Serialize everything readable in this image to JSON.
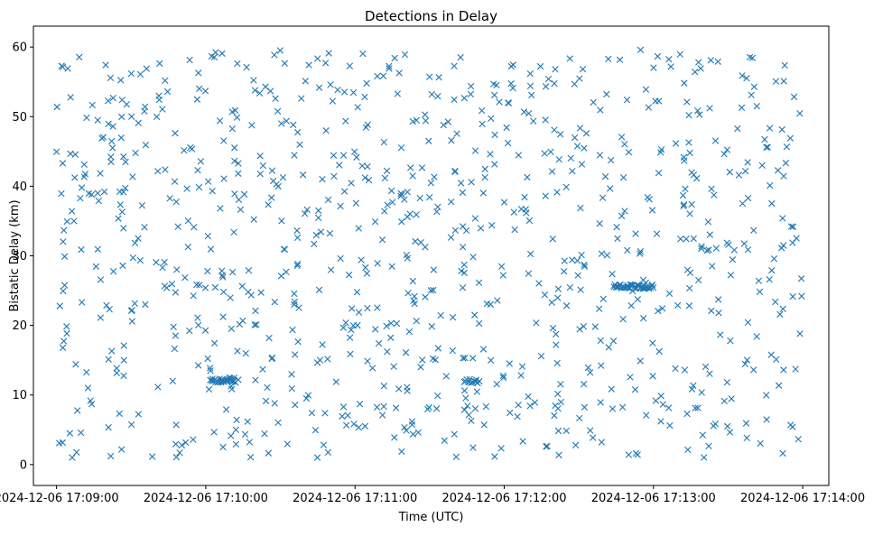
{
  "chart_data": {
    "type": "scatter",
    "title": "Detections in Delay",
    "xlabel": "Time (UTC)",
    "ylabel": "Bistatic Delay (km)",
    "marker": "x",
    "series_color": "#1f77b4",
    "grid": false,
    "legend": "none",
    "x_unit": "seconds after 2024-12-06 17:09:00",
    "x_range": [
      0,
      300
    ],
    "xlim": [
      -9.3,
      310.5
    ],
    "ylim": [
      -3,
      63
    ],
    "x_ticks": [
      {
        "value": 0,
        "label": "2024-12-06 17:09:00"
      },
      {
        "value": 60,
        "label": "2024-12-06 17:10:00"
      },
      {
        "value": 120,
        "label": "2024-12-06 17:11:00"
      },
      {
        "value": 180,
        "label": "2024-12-06 17:12:00"
      },
      {
        "value": 240,
        "label": "2024-12-06 17:13:00"
      },
      {
        "value": 300,
        "label": "2024-12-06 17:14:00"
      }
    ],
    "y_ticks": [
      {
        "value": 0,
        "label": "0"
      },
      {
        "value": 10,
        "label": "10"
      },
      {
        "value": 20,
        "label": "20"
      },
      {
        "value": 30,
        "label": "30"
      },
      {
        "value": 40,
        "label": "40"
      },
      {
        "value": 50,
        "label": "50"
      },
      {
        "value": 60,
        "label": "60"
      }
    ],
    "point_count": 1000,
    "notable_clusters": [
      {
        "label": "dense run",
        "x": [
          62,
          72
        ],
        "y": [
          11.8,
          12.6
        ],
        "count": 30
      },
      {
        "label": "dense run",
        "x": [
          164,
          170
        ],
        "y": [
          11.6,
          12.3
        ],
        "count": 12
      },
      {
        "label": "dense run",
        "x": [
          224,
          240
        ],
        "y": [
          25.3,
          25.9
        ],
        "count": 40
      }
    ]
  }
}
